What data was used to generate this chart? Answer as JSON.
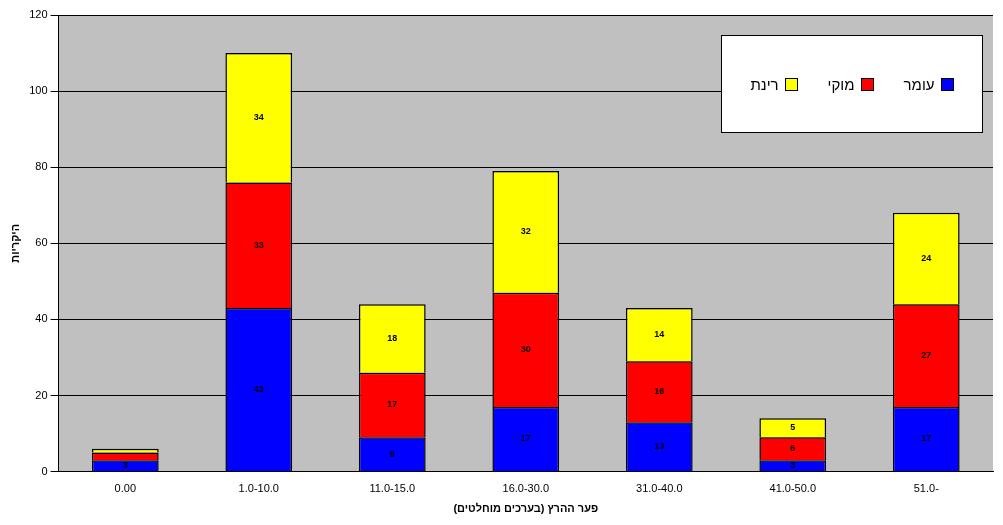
{
  "chart_data": {
    "type": "bar",
    "stacked": true,
    "xlabel": "פער ההרץ (בערכים מוחלטים)",
    "ylabel": "היקריות",
    "categories": [
      "0.00",
      "1.0-10.0",
      "11.0-15.0",
      "16.0-30.0",
      "31.0-40.0",
      "41.0-50.0",
      "51.0-"
    ],
    "series": [
      {
        "name": "עומר",
        "color": "#0000ff",
        "values": [
          3,
          43,
          9,
          17,
          13,
          3,
          17
        ],
        "value_labels": [
          "3",
          "43",
          "9",
          "17",
          "13",
          "3",
          "17"
        ]
      },
      {
        "name": "מוקי",
        "color": "#ff0000",
        "values": [
          2,
          33,
          17,
          30,
          16,
          6,
          27
        ],
        "value_labels": [
          null,
          "33",
          "17",
          "30",
          "16",
          "6",
          "27"
        ]
      },
      {
        "name": "רינת",
        "color": "#ffff00",
        "values": [
          1,
          34,
          18,
          32,
          14,
          5,
          24
        ],
        "value_labels": [
          null,
          "34",
          "18",
          "32",
          "14",
          "5",
          "24"
        ]
      }
    ],
    "ylim": [
      0,
      120
    ],
    "yticks": [
      0,
      20,
      40,
      60,
      80,
      100,
      120
    ],
    "grid": "y",
    "legend": "top right"
  }
}
